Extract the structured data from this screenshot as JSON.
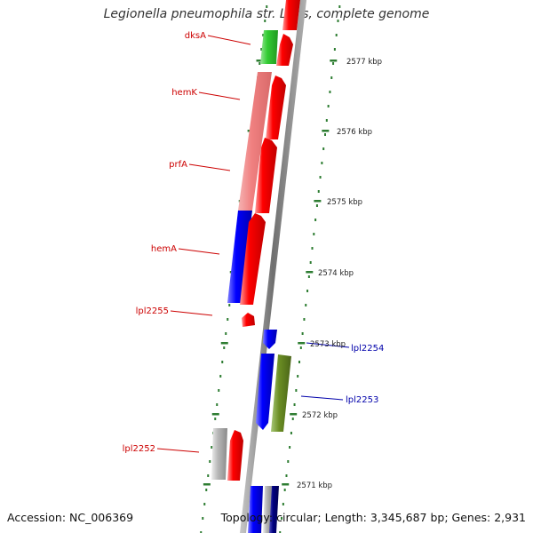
{
  "title": "Legionella pneumophila str. Lens, complete genome",
  "footer": {
    "accession": "Accession: NC_006369",
    "summary": "Topology: circular; Length: 3,345,687 bp; Genes: 2,931"
  },
  "colors": {
    "red_gene": "#ff0000",
    "pink_gene": "#f08080",
    "green_gene": "#33cc33",
    "blue_gene": "#0000ff",
    "olive_gene": "#6b8e23",
    "grey_gene": "#b8b8b8",
    "navy_gene": "#000080",
    "backbone": "#888888",
    "tick": "#2e7d32",
    "label_red": "#cc0000",
    "label_blue": "#0000aa"
  },
  "kbp_labels": [
    "2577 kbp",
    "2576 kbp",
    "2575 kbp",
    "2574 kbp",
    "2573 kbp",
    "2572 kbp",
    "2571 kbp"
  ],
  "genes_left": [
    {
      "name": "dksA",
      "color": "green"
    },
    {
      "name": "hemK",
      "color": "pink"
    },
    {
      "name": "prfA",
      "color": "pink_blue"
    },
    {
      "name": "hemA",
      "color": "blue"
    },
    {
      "name": "lpl2255",
      "label": "lpl2255",
      "color": "red"
    },
    {
      "name": "lpl2252",
      "label": "lpl2252",
      "color": "grey"
    }
  ],
  "genes_right": [
    {
      "name": "lpl2254",
      "label": "lpl2254",
      "color": "blue"
    },
    {
      "name": "lpl2253",
      "label": "lpl2253",
      "color": "olive"
    }
  ]
}
